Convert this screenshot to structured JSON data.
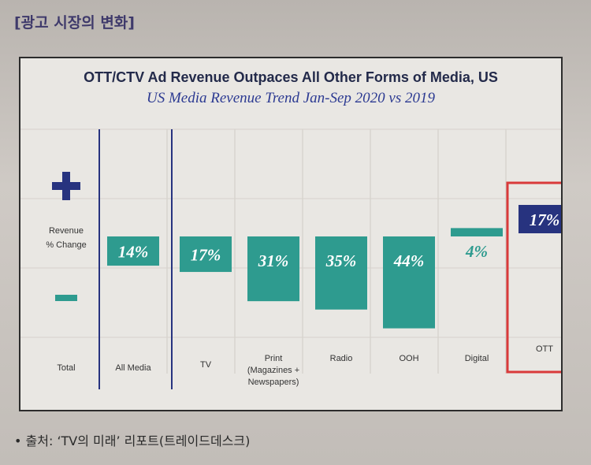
{
  "page": {
    "section_heading": "[광고 시장의 변화]",
    "footnote": "• 출처: ‘TV의 미래’ 리포트(트레이드데스크)"
  },
  "colors": {
    "bar": "#2e9b8f",
    "highlight_bar": "#27337f",
    "highlight_box": "#d93a3a",
    "plus_minus": "#27337f"
  },
  "chart_data": {
    "type": "bar",
    "title": "OTT/CTV Ad Revenue Outpaces All Other Forms of Media, US",
    "subtitle": "US Media Revenue Trend Jan-Sep 2020 vs 2019",
    "ylabel_lines": [
      "Revenue",
      "% Change"
    ],
    "left_column_label": "Total",
    "plus_symbol": "+",
    "minus_symbol": "−",
    "categories": [
      "All Media",
      "TV",
      "Print (Magazines + Newspapers)",
      "Radio",
      "OOH",
      "Digital",
      "OTT"
    ],
    "category_label_lines": [
      [
        "All Media"
      ],
      [
        "TV"
      ],
      [
        "Print",
        "(Magazines +",
        "Newspapers)"
      ],
      [
        "Radio"
      ],
      [
        "OOH"
      ],
      [
        "Digital"
      ],
      [
        "OTT"
      ]
    ],
    "values": [
      -14,
      -17,
      -31,
      -35,
      -44,
      4,
      17
    ],
    "value_labels": [
      "14%",
      "17%",
      "31%",
      "35%",
      "44%",
      "4%",
      "17%"
    ],
    "highlighted_category": "OTT",
    "ylim": [
      -50,
      50
    ],
    "grid": true
  }
}
